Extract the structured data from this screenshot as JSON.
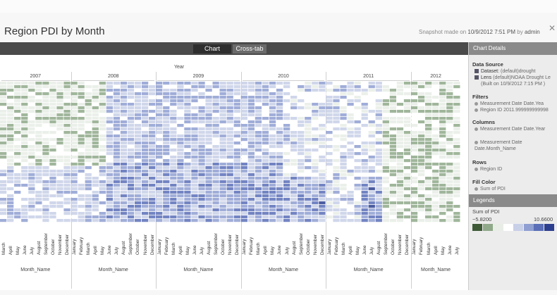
{
  "title": "Region PDI by Month",
  "snapshot": {
    "prefix": "Snapshot made on",
    "date": "10/9/2012 7:51 PM",
    "by": "by",
    "user": "admin"
  },
  "tabs": [
    {
      "label": "Chart",
      "active": true
    },
    {
      "label": "Cross-tab",
      "active": false
    }
  ],
  "chart": {
    "year_axis_title": "Year",
    "years": [
      "2007",
      "2008",
      "2009",
      "2010",
      "2011",
      "2012"
    ],
    "month_axis_title": "Month_Name",
    "months_2007": [
      "March",
      "April",
      "May",
      "June",
      "July",
      "August",
      "September",
      "October",
      "November",
      "December"
    ],
    "months_full": [
      "January",
      "February",
      "March",
      "April",
      "May",
      "June",
      "July",
      "August",
      "September",
      "October",
      "November",
      "December"
    ],
    "months_2012": [
      "January",
      "February",
      "March",
      "April",
      "May",
      "June",
      "July"
    ]
  },
  "details": {
    "header": "Chart Details",
    "data_source_title": "Data Source",
    "dataset_label": "Dataset:",
    "dataset_value": "(default)drought",
    "lens_label": "Lens",
    "lens_value": "(default)NOAA Drought Le",
    "lens_built": "(Built on 10/9/2012 7:15 PM )",
    "filters_title": "Filters",
    "filters": [
      "Measurement Date Date.Yea",
      "Region ID 2011.999999999998"
    ],
    "columns_title": "Columns",
    "columns": [
      "Measurement Date Date.Year",
      "Measurement Date Date.Month_Name"
    ],
    "rows_title": "Rows",
    "rows": [
      "Region ID"
    ],
    "fill_title": "Fill Color",
    "fill": [
      "Sum of PDI"
    ],
    "legends_header": "Legends",
    "legend_title": "Sum of PDI",
    "legend_min": "−5.8200",
    "legend_max": "10.6600",
    "legend_colors": [
      "#3f5a36",
      "#8fa98a",
      "#e8ede6",
      "#ffffff",
      "#c8d0e8",
      "#8f9fd1",
      "#5a6fb7",
      "#2c3f8f"
    ]
  }
}
